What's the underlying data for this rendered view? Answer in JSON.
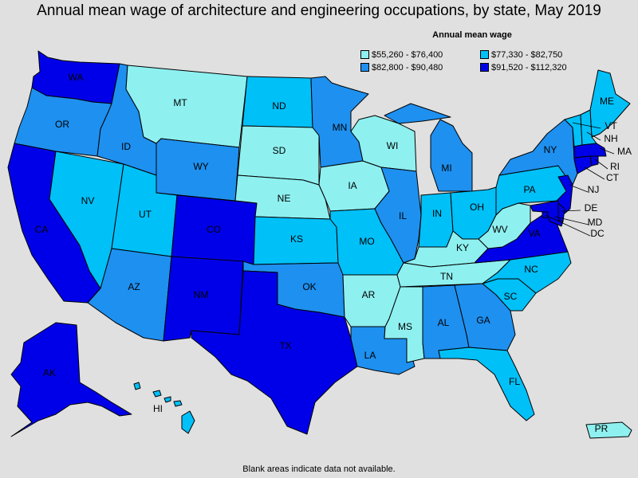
{
  "title": "Annual mean wage of architecture and engineering occupations, by state, May 2019",
  "legend": {
    "title": "Annual mean wage",
    "items": [
      {
        "label": "$55,260 - $76,400",
        "color": "#8ff0f0"
      },
      {
        "label": "$77,330 - $82,750",
        "color": "#00c0f8"
      },
      {
        "label": "$82,800 - $90,480",
        "color": "#1e90f0"
      },
      {
        "label": "$91,520 - $112,320",
        "color": "#0000e8"
      }
    ]
  },
  "states": [
    {
      "code": "WA",
      "label": "WA",
      "class": 3
    },
    {
      "code": "OR",
      "label": "OR",
      "class": 2
    },
    {
      "code": "CA",
      "label": "CA",
      "class": 3
    },
    {
      "code": "NV",
      "label": "NV",
      "class": 1
    },
    {
      "code": "ID",
      "label": "ID",
      "class": 2
    },
    {
      "code": "MT",
      "label": "MT",
      "class": 0
    },
    {
      "code": "WY",
      "label": "WY",
      "class": 2
    },
    {
      "code": "UT",
      "label": "UT",
      "class": 1
    },
    {
      "code": "AZ",
      "label": "AZ",
      "class": 2
    },
    {
      "code": "CO",
      "label": "CO",
      "class": 3
    },
    {
      "code": "NM",
      "label": "NM",
      "class": 3
    },
    {
      "code": "ND",
      "label": "ND",
      "class": 1
    },
    {
      "code": "SD",
      "label": "SD",
      "class": 0
    },
    {
      "code": "NE",
      "label": "NE",
      "class": 0
    },
    {
      "code": "KS",
      "label": "KS",
      "class": 1
    },
    {
      "code": "OK",
      "label": "OK",
      "class": 2
    },
    {
      "code": "TX",
      "label": "TX",
      "class": 3
    },
    {
      "code": "MN",
      "label": "MN",
      "class": 2
    },
    {
      "code": "IA",
      "label": "IA",
      "class": 0
    },
    {
      "code": "MO",
      "label": "MO",
      "class": 1
    },
    {
      "code": "AR",
      "label": "AR",
      "class": 0
    },
    {
      "code": "LA",
      "label": "LA",
      "class": 2
    },
    {
      "code": "WI",
      "label": "WI",
      "class": 0
    },
    {
      "code": "IL",
      "label": "IL",
      "class": 2
    },
    {
      "code": "MI",
      "label": "MI",
      "class": 2
    },
    {
      "code": "IN",
      "label": "IN",
      "class": 1
    },
    {
      "code": "OH",
      "label": "OH",
      "class": 1
    },
    {
      "code": "KY",
      "label": "KY",
      "class": 0
    },
    {
      "code": "TN",
      "label": "TN",
      "class": 0
    },
    {
      "code": "MS",
      "label": "MS",
      "class": 0
    },
    {
      "code": "AL",
      "label": "AL",
      "class": 2
    },
    {
      "code": "GA",
      "label": "GA",
      "class": 2
    },
    {
      "code": "FL",
      "label": "FL",
      "class": 1
    },
    {
      "code": "SC",
      "label": "SC",
      "class": 1
    },
    {
      "code": "NC",
      "label": "NC",
      "class": 1
    },
    {
      "code": "VA",
      "label": "VA",
      "class": 3
    },
    {
      "code": "WV",
      "label": "WV",
      "class": 0
    },
    {
      "code": "PA",
      "label": "PA",
      "class": 1
    },
    {
      "code": "NY",
      "label": "NY",
      "class": 2
    },
    {
      "code": "ME",
      "label": "ME",
      "class": 1
    },
    {
      "code": "VT",
      "label": "VT",
      "class": 1
    },
    {
      "code": "NH",
      "label": "NH",
      "class": 1
    },
    {
      "code": "MA",
      "label": "MA",
      "class": 3
    },
    {
      "code": "RI",
      "label": "RI",
      "class": 3
    },
    {
      "code": "CT",
      "label": "CT",
      "class": 3
    },
    {
      "code": "NJ",
      "label": "NJ",
      "class": 3
    },
    {
      "code": "DE",
      "label": "DE",
      "class": 3
    },
    {
      "code": "MD",
      "label": "MD",
      "class": 3
    },
    {
      "code": "DC",
      "label": "DC",
      "class": 3
    },
    {
      "code": "AK",
      "label": "AK",
      "class": 3
    },
    {
      "code": "HI",
      "label": "HI",
      "class": 1
    },
    {
      "code": "PR",
      "label": "PR",
      "class": 0
    }
  ],
  "footnote": "Blank areas indicate data not available."
}
